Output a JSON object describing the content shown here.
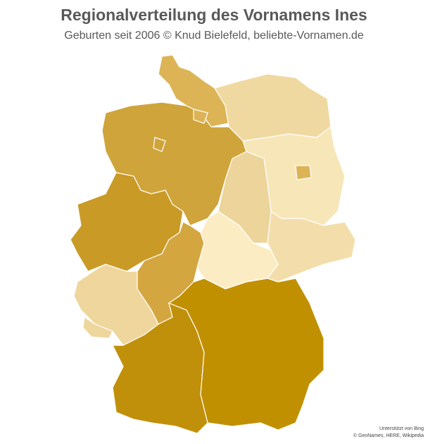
{
  "header": {
    "title": "Regionalverteilung des Vornamens Ines",
    "subtitle": "Geburten seit 2006  © Knud Bielefeld, beliebte-Vornamen.de"
  },
  "attribution": {
    "line1": "Unterstützt von Bing",
    "line2": "© GeoNames, HERE, Wikipedia"
  }
}
